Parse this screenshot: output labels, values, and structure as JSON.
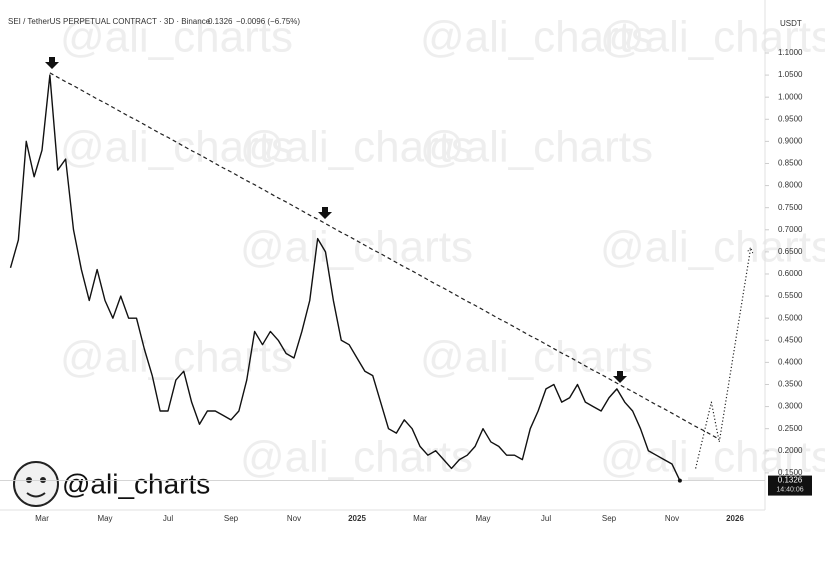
{
  "chart_data": {
    "type": "line",
    "title": "SEI / TetherUS PERPETUAL CONTRACT · 3D · Binance",
    "last_price": "0.1326",
    "change": "−0.0096 (−6.75%)",
    "axis_unit": "USDT",
    "watermark": "@ali_charts",
    "price_tag": "0.1326",
    "countdown": "14:40:06",
    "x": [
      null,
      null,
      null,
      null,
      "Mar",
      null,
      null,
      null,
      null,
      null,
      null,
      null,
      "May",
      null,
      null,
      null,
      null,
      null,
      null,
      null,
      "Jul",
      null,
      null,
      null,
      null,
      null,
      null,
      null,
      "Sep",
      null,
      null,
      null,
      null,
      null,
      null,
      null,
      "Nov",
      null,
      null,
      null,
      null,
      null,
      null,
      null,
      "2025",
      null,
      null,
      null,
      null,
      null,
      null,
      null,
      "Mar",
      null,
      null,
      null,
      null,
      null,
      null,
      null,
      "May",
      null,
      null,
      null,
      null,
      null,
      null,
      null,
      "Jul",
      null,
      null,
      null,
      null,
      null,
      null,
      null,
      "Sep",
      null,
      null,
      null,
      null,
      null,
      null,
      null,
      "Nov",
      null,
      null,
      null,
      null,
      null,
      null,
      null,
      "2026",
      null,
      null
    ],
    "series": [
      {
        "color": "#111111",
        "style": "solid",
        "values": [
          0.614,
          0.677,
          0.9,
          0.82,
          0.88,
          1.05,
          0.835,
          0.86,
          0.7,
          0.61,
          0.54,
          0.61,
          0.54,
          0.5,
          0.55,
          0.5,
          0.5,
          0.43,
          0.37,
          0.29,
          0.29,
          0.36,
          0.38,
          0.31,
          0.26,
          0.29,
          0.29,
          0.28,
          0.27,
          0.29,
          0.36,
          0.47,
          0.44,
          0.47,
          0.45,
          0.42,
          0.41,
          0.47,
          0.54,
          0.68,
          0.65,
          0.54,
          0.45,
          0.44,
          0.41,
          0.38,
          0.37,
          0.31,
          0.25,
          0.24,
          0.27,
          0.25,
          0.21,
          0.19,
          0.2,
          0.18,
          0.16,
          0.18,
          0.19,
          0.21,
          0.25,
          0.22,
          0.21,
          0.19,
          0.19,
          0.18,
          0.25,
          0.29,
          0.34,
          0.35,
          0.31,
          0.32,
          0.35,
          0.31,
          0.3,
          0.29,
          0.32,
          0.34,
          0.31,
          0.29,
          0.25,
          0.2,
          0.19,
          0.18,
          0.17,
          0.1326,
          null,
          null,
          null,
          null,
          null,
          null,
          null,
          null,
          null
        ]
      },
      {
        "color": "#222222",
        "style": "dashed",
        "values": [
          null,
          null,
          null,
          null,
          null,
          1.055,
          1.045,
          1.035,
          1.026,
          1.016,
          1.006,
          0.996,
          0.987,
          0.977,
          0.967,
          0.957,
          0.948,
          0.938,
          0.928,
          0.918,
          0.909,
          0.899,
          0.889,
          0.879,
          0.87,
          0.86,
          0.85,
          0.84,
          0.831,
          0.821,
          0.811,
          0.802,
          0.792,
          0.782,
          0.772,
          0.763,
          0.753,
          0.743,
          0.733,
          0.724,
          0.714,
          0.704,
          0.694,
          0.685,
          0.675,
          0.665,
          0.655,
          0.646,
          0.636,
          0.626,
          0.616,
          0.607,
          0.597,
          0.587,
          0.577,
          0.568,
          0.558,
          0.548,
          0.538,
          0.529,
          0.519,
          0.509,
          0.499,
          0.49,
          0.48,
          0.47,
          0.46,
          0.451,
          0.441,
          0.431,
          0.421,
          0.412,
          0.402,
          0.392,
          0.382,
          0.373,
          0.363,
          0.353,
          0.343,
          0.334,
          0.324,
          0.314,
          0.304,
          0.295,
          0.285,
          0.275,
          0.265,
          0.255,
          0.246,
          0.236,
          0.226,
          null,
          null,
          null,
          null
        ]
      },
      {
        "color": "#222222",
        "style": "dotted",
        "values": [
          null,
          null,
          null,
          null,
          null,
          null,
          null,
          null,
          null,
          null,
          null,
          null,
          null,
          null,
          null,
          null,
          null,
          null,
          null,
          null,
          null,
          null,
          null,
          null,
          null,
          null,
          null,
          null,
          null,
          null,
          null,
          null,
          null,
          null,
          null,
          null,
          null,
          null,
          null,
          null,
          null,
          null,
          null,
          null,
          null,
          null,
          null,
          null,
          null,
          null,
          null,
          null,
          null,
          null,
          null,
          null,
          null,
          null,
          null,
          null,
          null,
          null,
          null,
          null,
          null,
          null,
          null,
          null,
          null,
          null,
          null,
          null,
          null,
          null,
          null,
          null,
          null,
          null,
          null,
          null,
          null,
          null,
          null,
          null,
          null,
          null,
          null,
          0.16,
          0.235,
          0.31,
          0.22,
          0.33,
          0.44,
          0.55,
          0.66
        ]
      }
    ],
    "ylim": [
      0.09,
      1.19
    ],
    "yticks": [
      {
        "value": 0.15,
        "label": "0.1500"
      },
      {
        "value": 0.2,
        "label": "0.2000"
      },
      {
        "value": 0.25,
        "label": "0.2500"
      },
      {
        "value": 0.3,
        "label": "0.3000"
      },
      {
        "value": 0.35,
        "label": "0.3500"
      },
      {
        "value": 0.4,
        "label": "0.4000"
      },
      {
        "value": 0.45,
        "label": "0.4500"
      },
      {
        "value": 0.5,
        "label": "0.5000"
      },
      {
        "value": 0.55,
        "label": "0.5500"
      },
      {
        "value": 0.6,
        "label": "0.6000"
      },
      {
        "value": 0.65,
        "label": "0.6500"
      },
      {
        "value": 0.7,
        "label": "0.7000"
      },
      {
        "value": 0.75,
        "label": "0.7500"
      },
      {
        "value": 0.8,
        "label": "0.8000"
      },
      {
        "value": 0.85,
        "label": "0.8500"
      },
      {
        "value": 0.9,
        "label": "0.9000"
      },
      {
        "value": 0.95,
        "label": "0.9500"
      },
      {
        "value": 1.0,
        "label": "1.0000"
      },
      {
        "value": 1.05,
        "label": "1.0500"
      },
      {
        "value": 1.1,
        "label": "1.1000"
      }
    ],
    "grid": false
  }
}
